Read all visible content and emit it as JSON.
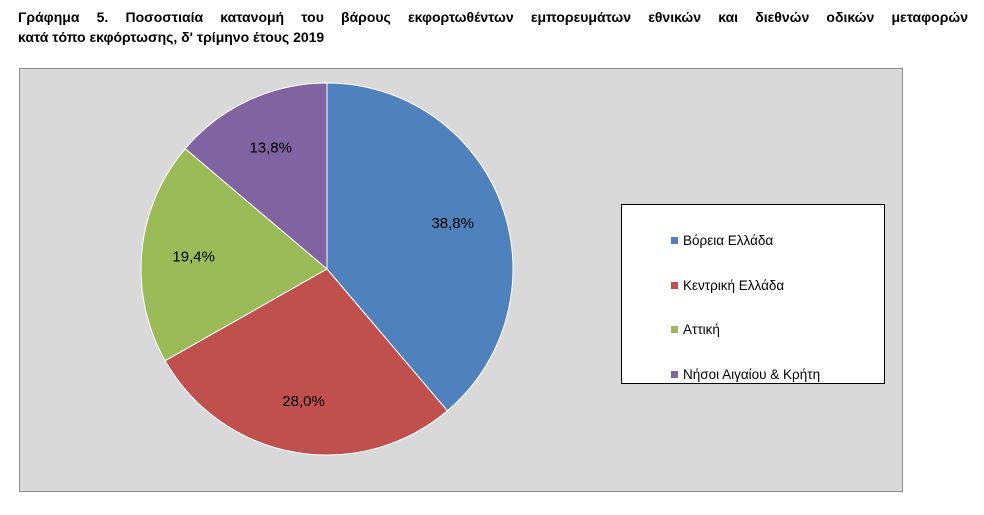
{
  "title": {
    "line1": "Γράφημα 5. Ποσοστιαία κατανομή του βάρους εκφορτωθέντων εμπορευμάτων εθνικών και διεθνών οδικών μεταφορών",
    "line2": "κατά τόπο εκφόρτωσης, δ' τρίμηνο έτους 2019"
  },
  "chart_data": {
    "type": "pie",
    "categories": [
      "Βόρεια Ελλάδα",
      "Κεντρική Ελλάδα",
      "Αττική",
      "Νήσοι Αιγαίου & Κρήτη"
    ],
    "values": [
      38.8,
      28.0,
      19.4,
      13.8
    ],
    "labels": [
      "38,8%",
      "28,0%",
      "19,4%",
      "13,8%"
    ],
    "colors": [
      "#4f81bd",
      "#c0504d",
      "#9bbb59",
      "#8064a2"
    ],
    "legend_position": "right",
    "start": "top",
    "direction": "clockwise"
  }
}
